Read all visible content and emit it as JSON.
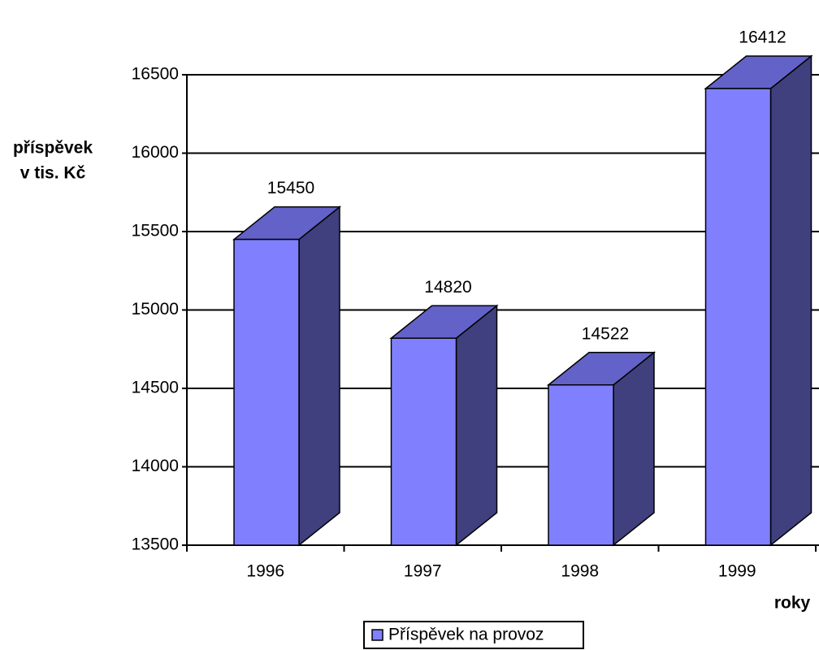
{
  "chart_data": {
    "type": "bar3d",
    "ylabel": [
      "příspěvek",
      "v tis. Kč"
    ],
    "xlabel": "roky",
    "categories": [
      "1996",
      "1997",
      "1998",
      "1999"
    ],
    "series": [
      {
        "name": "Příspěvek na provoz",
        "color": "#8080ff",
        "values": [
          15450,
          14820,
          14522,
          16412
        ]
      }
    ],
    "ylim": [
      13500,
      16500
    ],
    "yticks": [
      13500,
      14000,
      14500,
      15000,
      15500,
      16000,
      16500
    ],
    "grid": true,
    "legend": "bottom"
  }
}
